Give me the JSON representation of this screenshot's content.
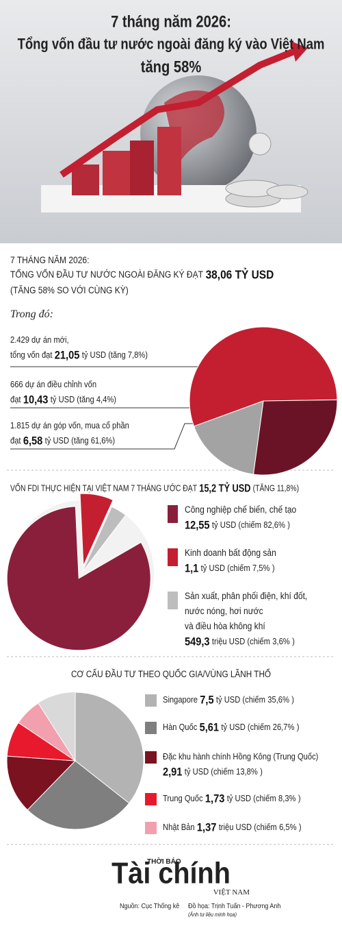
{
  "header": {
    "title_lines": [
      "7 tháng năm 2026:",
      "Tổng vốn đầu tư nước ngoài đăng ký vào Việt Nam",
      "tăng 58%"
    ]
  },
  "summary": {
    "line1": "7 THÁNG NĂM 2026:",
    "line2": "TỔNG VỐN ĐẦU TƯ NƯỚC NGOÀI ĐĂNG KÝ ĐẠT",
    "line2_value": "38,06 TỶ USD",
    "line3": "(TĂNG 58% SO VỚI CÙNG KỲ)",
    "note": "Trong đó:"
  },
  "chart_data": [
    {
      "type": "pie",
      "lines_before": [
        "2.429 dự án mới,",
        "666 dự án điều chỉnh vốn",
        "1.815 dự án góp vốn, mua cổ phần"
      ],
      "value_prefixes": [
        "tổng vốn đạt",
        "đạt",
        "đạt"
      ],
      "values": [
        21.05,
        10.43,
        6.58
      ],
      "value_labels": [
        "21,05",
        "10,43",
        "6,58"
      ],
      "value_suffixes": [
        "tỷ USD (tăng 7,8%)",
        "tỷ USD (tăng 4,4%)",
        "tỷ USD (tăng 61,6%)"
      ],
      "colors": [
        "#c41f30",
        "#6b1326",
        "#a3a3a3"
      ]
    },
    {
      "type": "pie",
      "title": "VỐN FDI THỰC HIỆN TẠI VIỆT NAM 7 THÁNG ƯỚC ĐẠT",
      "title_value": "15,2 TỶ USD",
      "title_suffix": "(TĂNG 11,8%)",
      "category_lines": [
        [
          "Công nghiệp chế biến, chế tạo"
        ],
        [
          "Kinh doanh bất động sản"
        ],
        [
          "Sản xuất, phân phối điện, khí đốt,",
          "nước nóng, hơi nước",
          "và điều hòa không khí"
        ]
      ],
      "amounts": [
        "12,55",
        "1,1",
        "549,3"
      ],
      "units": [
        "tỷ USD (chiếm",
        "tỷ USD (chiếm",
        "triệu USD (chiếm"
      ],
      "values": [
        82.6,
        7.5,
        3.6
      ],
      "value_labels": [
        "82,6%",
        "7,5%",
        "3,6%"
      ],
      "close": ")",
      "colors": [
        "#8a1f3c",
        "#c41f30",
        "#bdbdbd"
      ]
    },
    {
      "type": "pie",
      "title": "CƠ CẤU ĐẦU TƯ THEO QUỐC GIA/VÙNG LÃNH THỔ",
      "categories": [
        "Singapore",
        "Hàn Quốc",
        "Đặc khu hành chính Hồng Kông (Trung Quốc)",
        "Trung Quốc",
        "Nhật Bản"
      ],
      "amounts": [
        "7,5",
        "5,61",
        "2,91",
        "1,73",
        "1,37"
      ],
      "units": [
        "tỷ USD (chiếm",
        "tỷ USD (chiếm",
        "tỷ USD (chiếm",
        "tỷ USD (chiếm",
        "triệu USD (chiếm"
      ],
      "values": [
        35.6,
        26.7,
        13.8,
        8.3,
        6.5
      ],
      "value_labels": [
        "35,6%",
        "26,7%",
        "13,8%",
        "8,3%",
        "6,5%"
      ],
      "close": ")",
      "colors": [
        "#b3b3b3",
        "#7f7f7f",
        "#7a1220",
        "#e8192c",
        "#f2a0ae"
      ]
    }
  ],
  "footer": {
    "brand_top": "THỜI BÁO",
    "brand": "Tài chính",
    "brand_sub": "VIỆT NAM",
    "source": "Nguồn: Cục Thống kê",
    "credit": "Đồ họa: Trịnh Tuấn - Phương Anh",
    "credit_note": "(Ảnh tư liệu minh họa)"
  }
}
